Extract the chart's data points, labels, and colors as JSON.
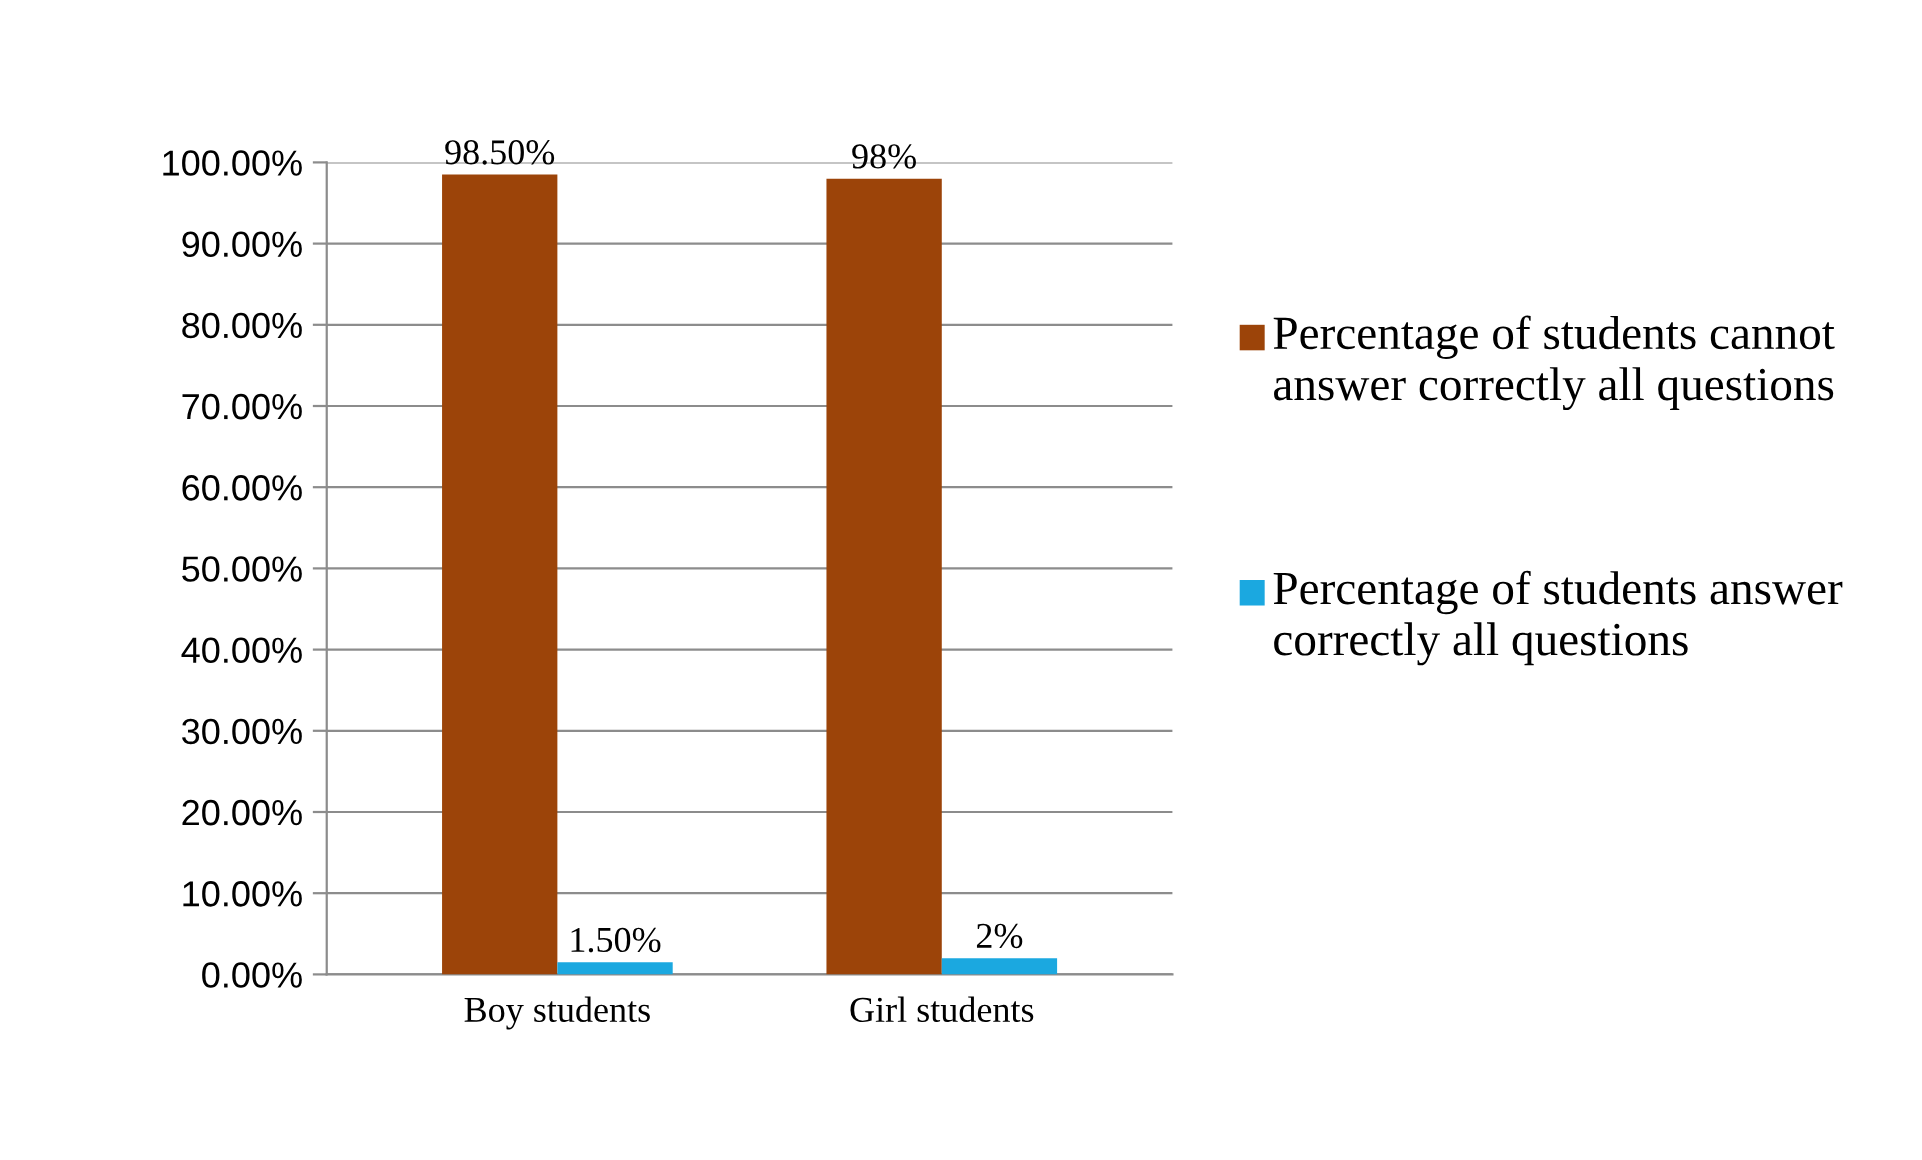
{
  "chart_data": {
    "type": "bar",
    "categories": [
      "Boy students",
      "Girl students"
    ],
    "series": [
      {
        "name": "Percentage of students cannot answer correctly all questions",
        "color": "#9c4409",
        "values": [
          98.5,
          98
        ],
        "value_labels": [
          "98.50%",
          "98%"
        ]
      },
      {
        "name": "Percentage of students answer correctly all questions",
        "color": "#1ba8e0",
        "values": [
          1.5,
          2
        ],
        "value_labels": [
          "1.50%",
          "2%"
        ]
      }
    ],
    "ylim": [
      0,
      100
    ],
    "yticks": [
      {
        "value": 0,
        "label": "0.00%"
      },
      {
        "value": 10,
        "label": "10.00%"
      },
      {
        "value": 20,
        "label": "20.00%"
      },
      {
        "value": 30,
        "label": "30.00%"
      },
      {
        "value": 40,
        "label": "40.00%"
      },
      {
        "value": 50,
        "label": "50.00%"
      },
      {
        "value": 60,
        "label": "60.00%"
      },
      {
        "value": 70,
        "label": "70.00%"
      },
      {
        "value": 80,
        "label": "80.00%"
      },
      {
        "value": 90,
        "label": "90.00%"
      },
      {
        "value": 100,
        "label": "100.00%"
      }
    ],
    "grid": "y",
    "legend": "right"
  }
}
